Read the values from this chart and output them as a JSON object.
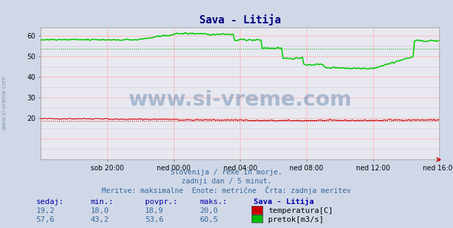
{
  "title": "Sava - Litija",
  "bg_color": "#d0d8e8",
  "plot_bg_color": "#e8e8f0",
  "grid_color": "#c8c8d8",
  "grid_color_major": "#ffaaaa",
  "title_color": "#000080",
  "axis_color": "#6699cc",
  "text_color": "#336699",
  "watermark": "www.si-vreme.com",
  "subtitle_lines": [
    "Slovenija / reke in morje.",
    "zadnji dan / 5 minut.",
    "Meritve: maksimalne  Enote: metrične  Črta: zadnja meritev"
  ],
  "xlabel_ticks": [
    "sob 20:00",
    "ned 00:00",
    "ned 04:00",
    "ned 08:00",
    "ned 12:00",
    "ned 16:00"
  ],
  "ylim": [
    0,
    64
  ],
  "yticks": [
    20,
    30,
    40,
    50,
    60
  ],
  "n_points": 289,
  "temp_min": 18.0,
  "temp_max": 20.0,
  "temp_sedaj": 19.2,
  "temp_povpr": 18.9,
  "flow_min": 43.2,
  "flow_max": 60.5,
  "flow_sedaj": 57.6,
  "flow_povpr": 53.6,
  "temp_color": "#cc0000",
  "flow_color": "#00cc00",
  "temp_dotted_color": "#cc0000",
  "flow_dotted_color": "#00aa00",
  "table_headers": [
    "sedaj:",
    "min.:",
    "povpr.:",
    "maks.:",
    "Sava - Litija"
  ],
  "table_row1": [
    "19,2",
    "18,0",
    "18,9",
    "20,0",
    "temperatura[C]"
  ],
  "table_row2": [
    "57,6",
    "43,2",
    "53,6",
    "60,5",
    "pretok[m3/s]"
  ],
  "table_color": "#0000aa",
  "legend_color1": "#cc0000",
  "legend_color2": "#00bb00"
}
